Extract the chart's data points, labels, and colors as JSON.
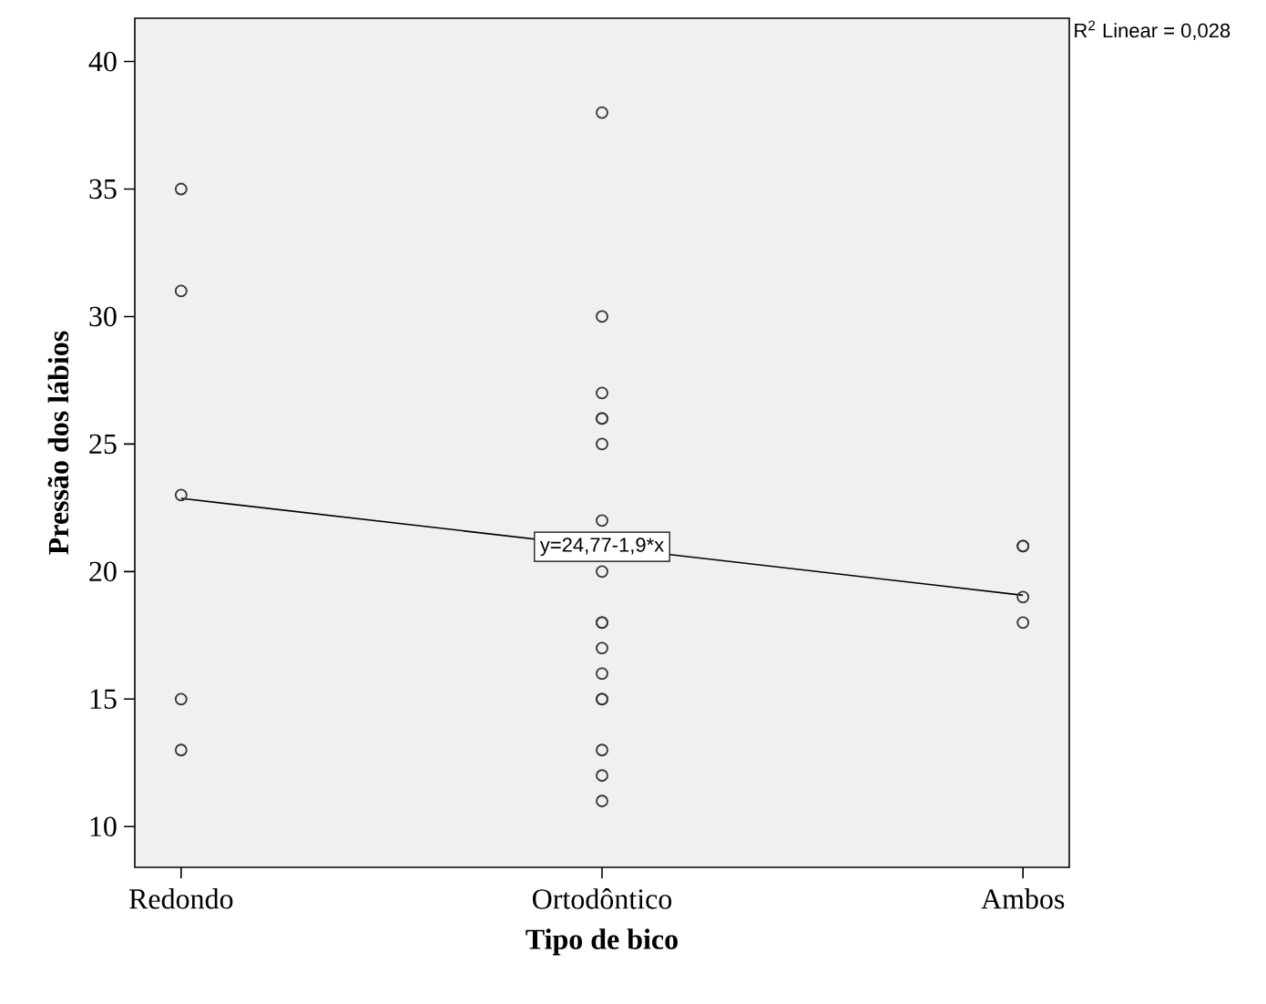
{
  "chart_data": {
    "type": "scatter",
    "xlabel": "Tipo de bico",
    "ylabel": "Pressão dos lábios",
    "annotations": [
      "R$^{2}$ Linear = 0,028",
      {
        "text": "y=24,77-1,9*x",
        "x": "Ortodôntico",
        "y": 20.97
      }
    ],
    "categories": [
      "Redondo",
      "Ortodôntico",
      "Ambos"
    ],
    "ylim": [
      8.4,
      41.7
    ],
    "yticks": [
      10,
      15,
      20,
      25,
      30,
      35,
      40
    ],
    "series": [
      {
        "color": "#333333",
        "marker": "circle",
        "x": [
          "Redondo",
          "Redondo",
          "Redondo",
          "Redondo",
          "Redondo",
          "Ortodôntico",
          "Ortodôntico",
          "Ortodôntico",
          "Ortodôntico",
          "Ortodôntico",
          "Ortodôntico",
          "Ortodôntico",
          "Ortodôntico",
          "Ortodôntico",
          "Ortodôntico",
          "Ortodôntico",
          "Ortodôntico",
          "Ortodôntico",
          "Ortodôntico",
          "Ortodôntico",
          "Ortodôntico",
          "Ortodôntico",
          "Ambos",
          "Ambos",
          "Ambos",
          "Ambos"
        ],
        "values": [
          35,
          31,
          23,
          15,
          13,
          38,
          30,
          27,
          26,
          26,
          25,
          22,
          20,
          18,
          18,
          17,
          16,
          15,
          15,
          13,
          12,
          11,
          21,
          21,
          19,
          18
        ]
      },
      {
        "type": "line",
        "color": "#000000",
        "values": [
          22.87,
          null,
          19.07
        ]
      }
    ]
  }
}
